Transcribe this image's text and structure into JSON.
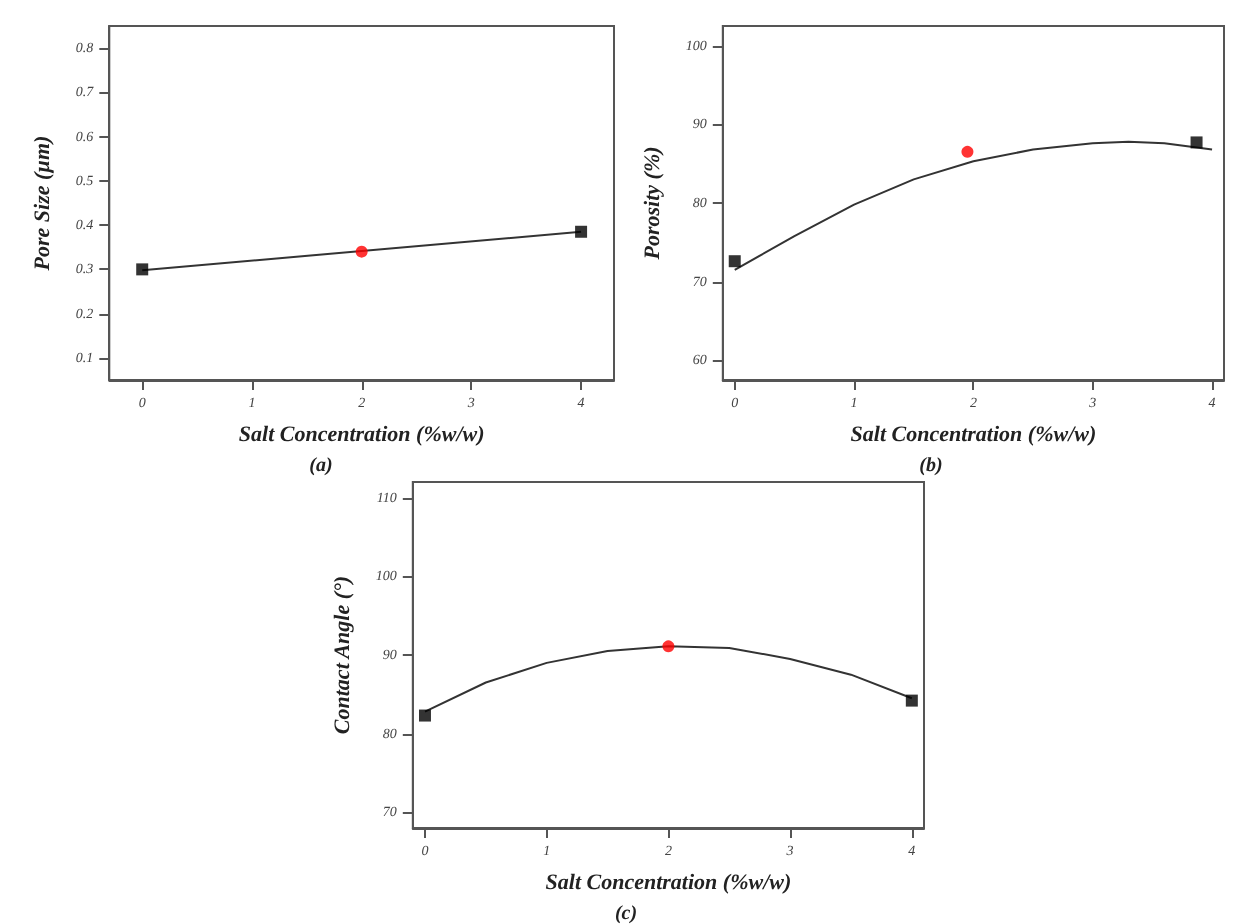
{
  "chart_data": [
    {
      "type": "line",
      "xlabel": "Salt Concentration (%w/w)",
      "ylabel": "Pore Size (µm)",
      "annotations": [
        "(a)"
      ],
      "xlim": [
        -0.3,
        4.3
      ],
      "xticks": [
        0,
        1,
        2,
        3,
        4
      ],
      "ylim": [
        0.05,
        0.85
      ],
      "yticks": [
        0.1,
        0.2,
        0.3,
        0.4,
        0.5,
        0.6,
        0.7,
        0.8
      ],
      "grid": false,
      "series": [
        {
          "color": "#333333",
          "marker": "none",
          "x": [
            0,
            4
          ],
          "values": [
            0.298,
            0.385
          ]
        },
        {
          "type": "scatter",
          "color": "#000000",
          "marker": "square",
          "x": [
            0,
            4
          ],
          "values": [
            0.3,
            0.385
          ]
        },
        {
          "type": "scatter",
          "color": "#ff0000",
          "marker": "circle",
          "x": [
            2
          ],
          "values": [
            0.34
          ]
        }
      ]
    },
    {
      "type": "line",
      "xlabel": "Salt Concentration (%w/w)",
      "ylabel": "Porosity (%)",
      "annotations": [
        "(b)"
      ],
      "xlim": [
        -0.1,
        4.1
      ],
      "xticks": [
        0,
        1,
        2,
        3,
        4
      ],
      "ylim": [
        57.5,
        102.5
      ],
      "yticks": [
        60,
        70,
        80,
        90,
        100
      ],
      "grid": false,
      "series": [
        {
          "color": "#333333",
          "marker": "none",
          "x": [
            0,
            0.5,
            1,
            1.5,
            2,
            2.5,
            3,
            3.3,
            3.6,
            4
          ],
          "values": [
            71.5,
            75.8,
            79.8,
            83,
            85.3,
            86.8,
            87.6,
            87.8,
            87.6,
            86.8
          ]
        },
        {
          "type": "scatter",
          "color": "#000000",
          "marker": "square",
          "x": [
            0,
            3.87
          ],
          "values": [
            72.6,
            87.7
          ]
        },
        {
          "type": "scatter",
          "color": "#ff0000",
          "marker": "circle",
          "x": [
            1.95
          ],
          "values": [
            86.5
          ]
        }
      ]
    },
    {
      "type": "line",
      "xlabel": "Salt Concentration (%w/w)",
      "ylabel": "Contact Angle (°)",
      "annotations": [
        "(c)"
      ],
      "xlim": [
        -0.1,
        4.1
      ],
      "xticks": [
        0,
        1,
        2,
        3,
        4
      ],
      "ylim": [
        68,
        112
      ],
      "yticks": [
        70,
        80,
        90,
        100,
        110
      ],
      "grid": false,
      "series": [
        {
          "color": "#333333",
          "marker": "none",
          "x": [
            0,
            0.5,
            1,
            1.5,
            2,
            2.5,
            3,
            3.5,
            4
          ],
          "values": [
            82.8,
            86.5,
            89.0,
            90.5,
            91.1,
            90.9,
            89.5,
            87.5,
            84.5
          ]
        },
        {
          "type": "scatter",
          "color": "#000000",
          "marker": "square",
          "x": [
            0,
            4
          ],
          "values": [
            82.3,
            84.2
          ]
        },
        {
          "type": "scatter",
          "color": "#ff0000",
          "marker": "circle",
          "x": [
            2
          ],
          "values": [
            91.1
          ]
        }
      ]
    }
  ]
}
